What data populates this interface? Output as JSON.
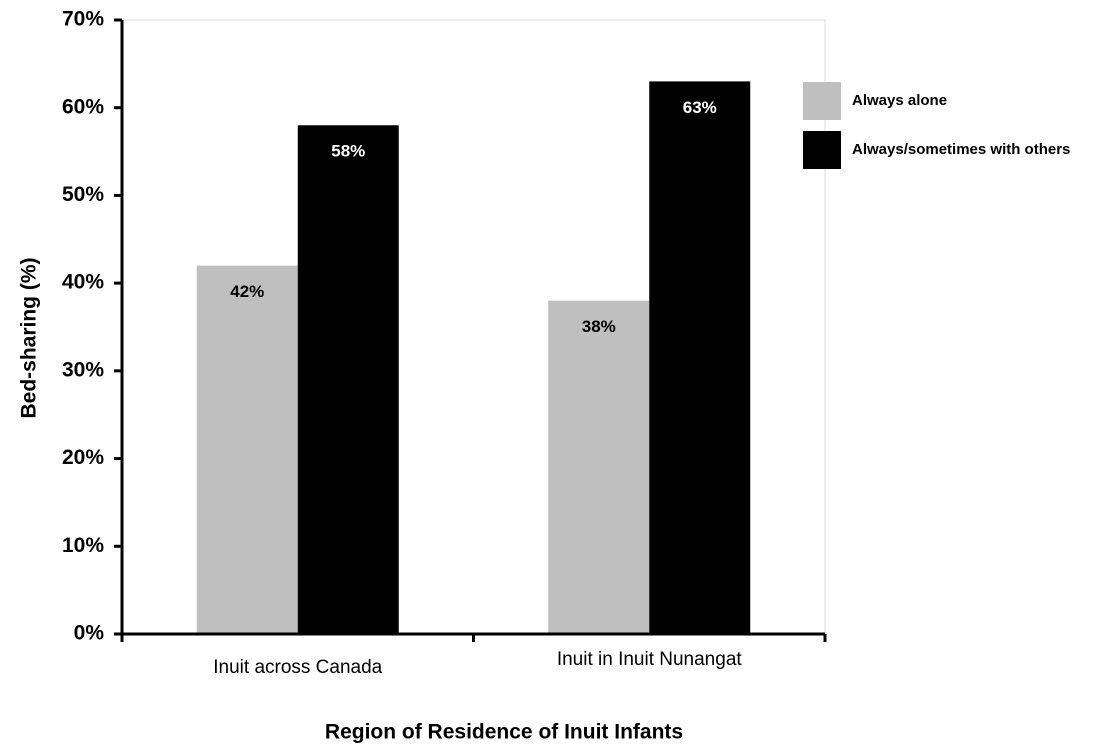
{
  "chart_data": {
    "type": "bar",
    "xlabel": "Region of Residence of Inuit Infants",
    "ylabel": "Bed-sharing (%)",
    "categories": [
      "Inuit across Canada",
      "Inuit in Inuit Nunangat"
    ],
    "series": [
      {
        "name": "Always alone",
        "color": "#bfbfbf",
        "values": [
          42,
          38
        ],
        "value_labels": [
          "42%",
          "38%"
        ]
      },
      {
        "name": "Always/sometimes with others",
        "color": "#000000",
        "values": [
          58,
          63
        ],
        "value_labels": [
          "58%",
          "63%"
        ]
      }
    ],
    "ylim": [
      0,
      70
    ],
    "yticks": [
      {
        "value": 0,
        "label": "0%"
      },
      {
        "value": 10,
        "label": "10%"
      },
      {
        "value": 20,
        "label": "20%"
      },
      {
        "value": 30,
        "label": "30%"
      },
      {
        "value": 40,
        "label": "40%"
      },
      {
        "value": 50,
        "label": "50%"
      },
      {
        "value": 60,
        "label": "60%"
      },
      {
        "value": 70,
        "label": "70%"
      }
    ],
    "legend": "right"
  }
}
